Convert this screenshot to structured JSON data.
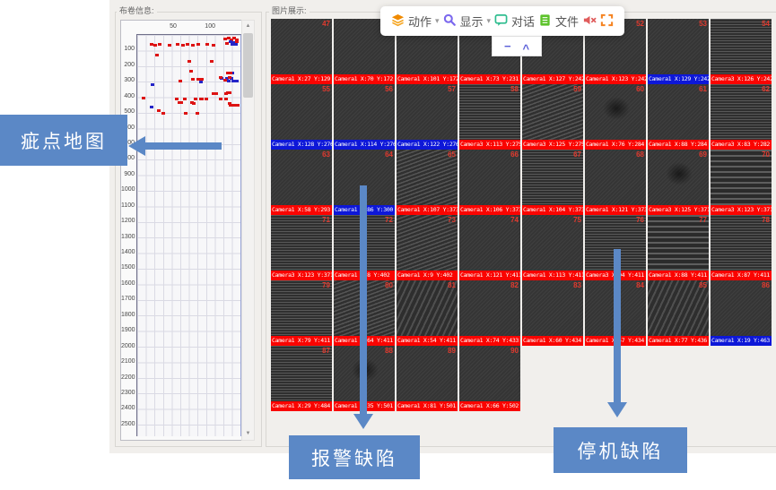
{
  "panels": {
    "left": {
      "title": "布卷信息:"
    },
    "right": {
      "title": "图片展示:"
    }
  },
  "toolbar": {
    "action": "动作",
    "display": "显示",
    "dialog": "对话",
    "file": "文件",
    "caret": "▾",
    "minus": "−",
    "collapse": "^",
    "colors": {
      "action_icon": "#f08a00",
      "display_icon": "#7b68ee",
      "dialog_icon": "#2fbd8f",
      "file_icon": "#5cc22a",
      "mute_icon": "#e05c5c",
      "fullscreen_icon": "#f58220"
    }
  },
  "annotations": {
    "map_label": "疵点地图",
    "alarm_label": "报警缺陷",
    "stop_label": "停机缺陷",
    "accent_color": "#5b88c6"
  },
  "scrollbar": {
    "up": "▲",
    "down": "▼"
  },
  "chart_data": {
    "type": "scatter",
    "x_ticks": [
      50,
      100
    ],
    "y_ticks": [
      100,
      200,
      300,
      400,
      500,
      600,
      700,
      800,
      900,
      1000,
      1100,
      1200,
      1300,
      1400,
      1500,
      1600,
      1700,
      1800,
      1900,
      2000,
      2100,
      2200,
      2300,
      2400,
      2500
    ],
    "xlim": [
      0,
      140
    ],
    "ylim": [
      0,
      2570
    ],
    "grid": true,
    "point_format": [
      "x",
      "y",
      "color(r=stop-defect, b=alarm-defect)"
    ],
    "points": [
      [
        20,
        62,
        "r"
      ],
      [
        24,
        66,
        "r"
      ],
      [
        31,
        60,
        "r"
      ],
      [
        44,
        64,
        "r"
      ],
      [
        55,
        58,
        "r"
      ],
      [
        62,
        64,
        "r"
      ],
      [
        68,
        60,
        "r"
      ],
      [
        75,
        66,
        "r"
      ],
      [
        83,
        62,
        "r"
      ],
      [
        95,
        60,
        "r"
      ],
      [
        103,
        64,
        "r"
      ],
      [
        119,
        25,
        "r"
      ],
      [
        124,
        20,
        "r"
      ],
      [
        128,
        30,
        "r"
      ],
      [
        132,
        22,
        "r"
      ],
      [
        135,
        32,
        "r"
      ],
      [
        126,
        45,
        "b"
      ],
      [
        131,
        48,
        "b"
      ],
      [
        135,
        42,
        "r"
      ],
      [
        122,
        55,
        "r"
      ],
      [
        129,
        60,
        "b"
      ],
      [
        134,
        58,
        "b"
      ],
      [
        27,
        129,
        "r"
      ],
      [
        70,
        172,
        "r"
      ],
      [
        101,
        172,
        "r"
      ],
      [
        73,
        231,
        "r"
      ],
      [
        127,
        242,
        "r"
      ],
      [
        123,
        242,
        "r"
      ],
      [
        129,
        242,
        "b"
      ],
      [
        126,
        242,
        "r"
      ],
      [
        128,
        276,
        "b"
      ],
      [
        114,
        276,
        "b"
      ],
      [
        122,
        276,
        "b"
      ],
      [
        113,
        275,
        "r"
      ],
      [
        125,
        275,
        "r"
      ],
      [
        76,
        284,
        "r"
      ],
      [
        88,
        284,
        "r"
      ],
      [
        83,
        282,
        "r"
      ],
      [
        58,
        293,
        "r"
      ],
      [
        86,
        300,
        "b"
      ],
      [
        124,
        295,
        "b"
      ],
      [
        130,
        295,
        "b"
      ],
      [
        135,
        296,
        "b"
      ],
      [
        119,
        290,
        "r"
      ],
      [
        21,
        318,
        "b"
      ],
      [
        107,
        373,
        "r"
      ],
      [
        106,
        373,
        "r"
      ],
      [
        104,
        373,
        "r"
      ],
      [
        121,
        373,
        "r"
      ],
      [
        125,
        371,
        "r"
      ],
      [
        123,
        371,
        "r"
      ],
      [
        8,
        402,
        "r"
      ],
      [
        9,
        402,
        "r"
      ],
      [
        121,
        411,
        "r"
      ],
      [
        113,
        411,
        "r"
      ],
      [
        94,
        411,
        "r"
      ],
      [
        88,
        411,
        "r"
      ],
      [
        87,
        411,
        "r"
      ],
      [
        79,
        411,
        "r"
      ],
      [
        64,
        411,
        "r"
      ],
      [
        54,
        411,
        "r"
      ],
      [
        74,
        433,
        "r"
      ],
      [
        60,
        434,
        "r"
      ],
      [
        57,
        434,
        "r"
      ],
      [
        77,
        436,
        "r"
      ],
      [
        19,
        463,
        "b"
      ],
      [
        127,
        450,
        "r"
      ],
      [
        132,
        452,
        "r"
      ],
      [
        136,
        448,
        "r"
      ],
      [
        125,
        440,
        "r"
      ],
      [
        29,
        484,
        "r"
      ],
      [
        35,
        501,
        "r"
      ],
      [
        81,
        501,
        "r"
      ],
      [
        66,
        502,
        "r"
      ]
    ]
  },
  "tiles": {
    "legend": {
      "stop_color": "#fa0400",
      "alarm_color": "#0d17d8"
    },
    "rows": [
      [
        {
          "label": "Camera1 X:27 Y:129",
          "type": "stop",
          "texture": "plain",
          "num": "47"
        },
        {
          "label": "Camera1 X:70 Y:172",
          "type": "stop",
          "texture": "plain",
          "num": "48"
        },
        {
          "label": "Camera1 X:101 Y:172",
          "type": "stop",
          "texture": "plain",
          "num": "49"
        },
        {
          "label": "Camera1 X:73 Y:231",
          "type": "stop",
          "texture": "plain",
          "num": "50"
        },
        {
          "label": "Camera1 X:127 Y:242",
          "type": "stop",
          "texture": "plain",
          "num": "51"
        },
        {
          "label": "Camera1 X:123 Y:242",
          "type": "stop",
          "texture": "plain",
          "num": "52"
        },
        {
          "label": "Camera1 X:129 Y:242",
          "type": "alarm",
          "texture": "plain",
          "num": "53"
        },
        {
          "label": "Camera3 X:126 Y:242",
          "type": "stop",
          "texture": "h",
          "num": "54"
        }
      ],
      [
        {
          "label": "Camera1 X:128 Y:276",
          "type": "alarm",
          "texture": "plain",
          "num": "55"
        },
        {
          "label": "Camera1 X:114 Y:276",
          "type": "alarm",
          "texture": "plain",
          "num": "56"
        },
        {
          "label": "Camera1 X:122 Y:276",
          "type": "alarm",
          "texture": "plain",
          "num": "57"
        },
        {
          "label": "Camera3 X:113 Y:275",
          "type": "stop",
          "texture": "h",
          "num": "58"
        },
        {
          "label": "Camera3 X:125 Y:275",
          "type": "stop",
          "texture": "wave",
          "num": "59"
        },
        {
          "label": "Camera1 X:76 Y:284",
          "type": "stop",
          "texture": "plain",
          "smudge": true,
          "num": "60"
        },
        {
          "label": "Camera1 X:88 Y:284",
          "type": "stop",
          "texture": "plain",
          "num": "61"
        },
        {
          "label": "Camera3 X:83 Y:282",
          "type": "stop",
          "texture": "h",
          "num": "62"
        }
      ],
      [
        {
          "label": "Camera1 X:58 Y:293",
          "type": "stop",
          "texture": "plain",
          "num": "63"
        },
        {
          "label": "Camera1 X:86 Y:300",
          "type": "alarm",
          "texture": "plain",
          "num": "64"
        },
        {
          "label": "Camera1 X:107 Y:373",
          "type": "stop",
          "texture": "wave",
          "num": "65"
        },
        {
          "label": "Camera1 X:106 Y:373",
          "type": "stop",
          "texture": "plain",
          "num": "66"
        },
        {
          "label": "Camera1 X:104 Y:373",
          "type": "stop",
          "texture": "h",
          "num": "67"
        },
        {
          "label": "Camera1 X:121 Y:373",
          "type": "stop",
          "texture": "plain",
          "num": "68"
        },
        {
          "label": "Camera3 X:125 Y:371",
          "type": "stop",
          "texture": "plain",
          "smudge": true,
          "num": "69"
        },
        {
          "label": "Camera3 X:123 Y:371",
          "type": "stop",
          "texture": "hc",
          "num": "70"
        }
      ],
      [
        {
          "label": "Camera3 X:123 Y:371",
          "type": "stop",
          "texture": "h",
          "num": "71"
        },
        {
          "label": "Camera1 X:8 Y:402",
          "type": "stop",
          "texture": "h",
          "num": "72"
        },
        {
          "label": "Camera1 X:9 Y:402",
          "type": "stop",
          "texture": "wave",
          "num": "73"
        },
        {
          "label": "Camera1 X:121 Y:411",
          "type": "stop",
          "texture": "plain",
          "num": "74"
        },
        {
          "label": "Camera1 X:113 Y:411",
          "type": "stop",
          "texture": "plain",
          "num": "75"
        },
        {
          "label": "Camera3 X:94 Y:411",
          "type": "stop",
          "texture": "h",
          "num": "76"
        },
        {
          "label": "Camera1 X:88 Y:411",
          "type": "stop",
          "texture": "hc",
          "num": "77"
        },
        {
          "label": "Camera1 X:87 Y:411",
          "type": "stop",
          "texture": "h",
          "num": "78"
        }
      ],
      [
        {
          "label": "Camera1 X:79 Y:411",
          "type": "stop",
          "texture": "h",
          "num": "79"
        },
        {
          "label": "Camera1 X:64 Y:411",
          "type": "stop",
          "texture": "wave",
          "num": "80"
        },
        {
          "label": "Camera1 X:54 Y:411",
          "type": "stop",
          "texture": "diag",
          "num": "81"
        },
        {
          "label": "Camera1 X:74 Y:433",
          "type": "stop",
          "texture": "plain",
          "num": "82"
        },
        {
          "label": "Camera1 X:60 Y:434",
          "type": "stop",
          "texture": "plain",
          "num": "83"
        },
        {
          "label": "Camera1 X:57 Y:434",
          "type": "stop",
          "texture": "plain",
          "num": "84"
        },
        {
          "label": "Camera1 X:77 Y:436",
          "type": "stop",
          "texture": "diag",
          "num": "85"
        },
        {
          "label": "Camera1 X:19 Y:463",
          "type": "alarm",
          "texture": "plain",
          "num": "86"
        }
      ],
      [
        {
          "label": "Camera1 X:29 Y:484",
          "type": "stop",
          "texture": "h",
          "num": "87"
        },
        {
          "label": "Camera1 X:35 Y:501",
          "type": "stop",
          "texture": "plain",
          "smudge": true,
          "num": "88"
        },
        {
          "label": "Camera1 X:81 Y:501",
          "type": "stop",
          "texture": "plain",
          "num": "89"
        },
        {
          "label": "Camera1 X:66 Y:502",
          "type": "stop",
          "texture": "plain",
          "num": "90"
        }
      ]
    ]
  }
}
